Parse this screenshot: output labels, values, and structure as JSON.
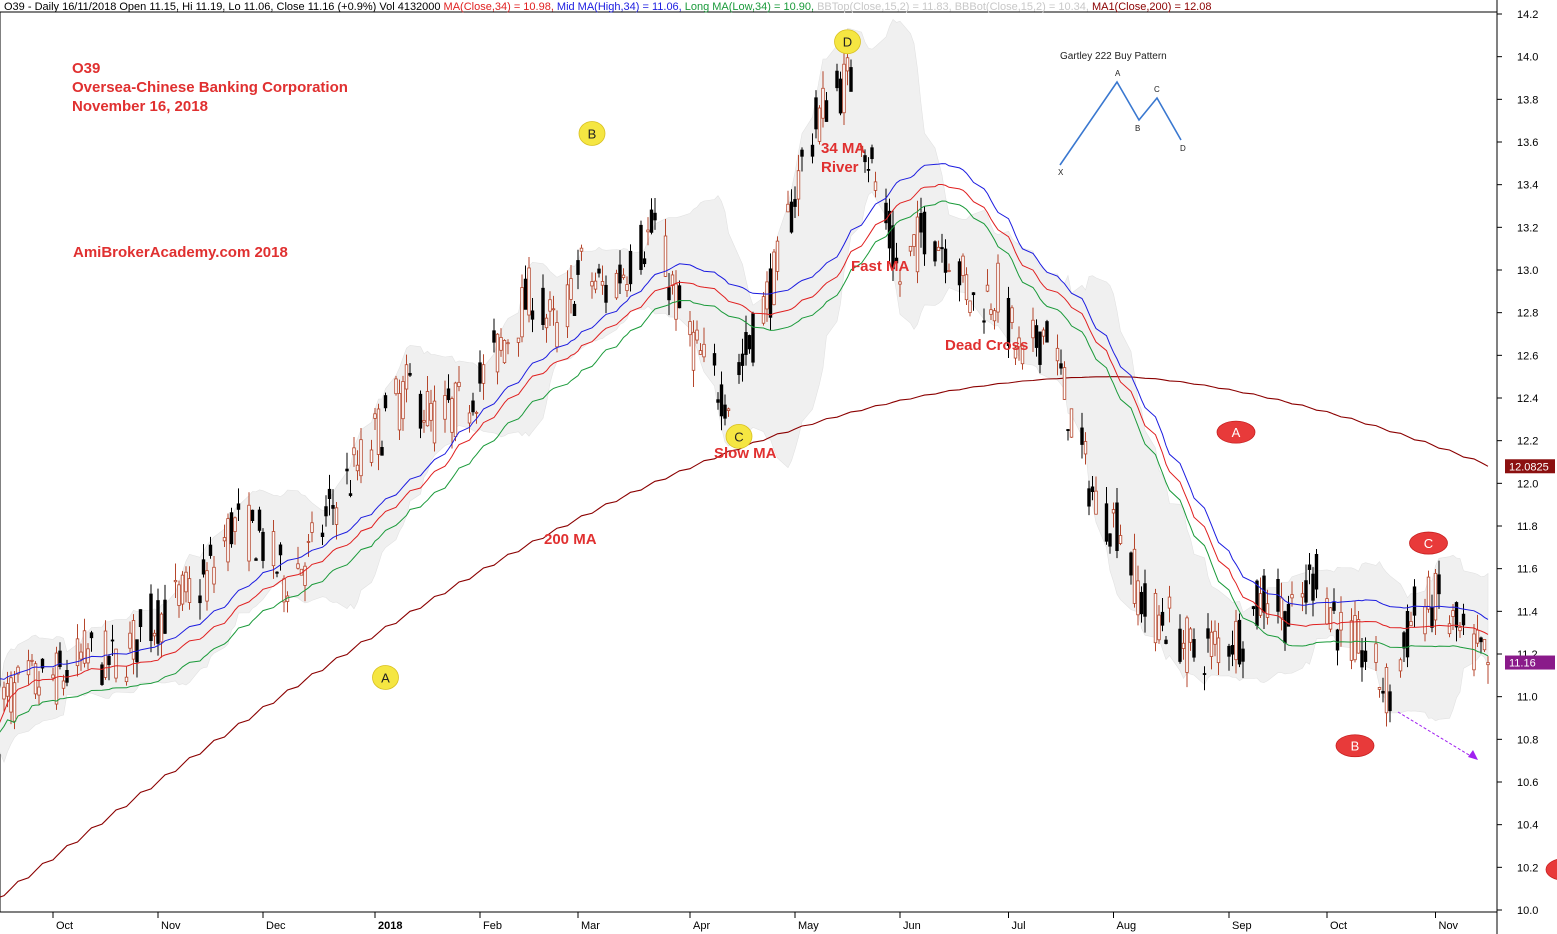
{
  "header": {
    "symbol_info": "O39 - Daily 16/11/2018 Open 11.15, Hi 11.19, Lo 11.06, Close 11.16 (+0.9%) Vol 4132000",
    "ma34": "MA(Close,34) = 10.98,",
    "mid_ma": "Mid MA(High,34) = 11.06,",
    "long_ma": "Long MA(Low,34) = 10.90,",
    "bbtop": "BBTop(Close,15,2) = 11.83,",
    "bbbot": "BBBot(Close,15,2) = 10.34,",
    "ma200": "MA1(Close,200) = 12.08"
  },
  "title": {
    "line1": "O39",
    "line2": "Oversea-Chinese Banking Corporation",
    "line3": "November 16, 2018"
  },
  "annotations": {
    "watermark": "AmiBrokerAcademy.com 2018",
    "ma34_river_1": "34 MA",
    "ma34_river_2": "River",
    "fast_ma": "Fast MA",
    "dead_cross": "Dead Cross",
    "slow_ma": "Slow MA",
    "ma200": "200 MA"
  },
  "gartley": {
    "title": "Gartley 222 Buy Pattern",
    "points": [
      "X",
      "A",
      "B",
      "C",
      "D"
    ]
  },
  "colors": {
    "candle_up": "#b5462c",
    "candle_down": "#000000",
    "ma34": "#e02020",
    "mid_ma": "#1c1ce0",
    "long_ma": "#1a9a3a",
    "ma200": "#8b0000",
    "bb_fill": "#f0f0f0",
    "label_red": "#e03030",
    "marker_yellow": "#f5e642",
    "marker_red": "#e83a3a",
    "price_badge": "#8b1010",
    "last_badge": "#8a1a8a",
    "forecast_arrow": "#a020f0"
  },
  "chart_data": {
    "type": "candlestick",
    "symbol": "O39",
    "ylim": [
      10.0,
      14.2
    ],
    "y_ticks": [
      10.0,
      10.2,
      10.4,
      10.6,
      10.8,
      11.0,
      11.2,
      11.4,
      11.6,
      11.8,
      12.0,
      12.2,
      12.4,
      12.6,
      12.8,
      13.0,
      13.2,
      13.4,
      13.6,
      13.8,
      14.0,
      14.2
    ],
    "month_labels": [
      {
        "label": "Oct",
        "date": "2017-10-02"
      },
      {
        "label": "Nov",
        "date": "2017-11-01"
      },
      {
        "label": "Dec",
        "date": "2017-12-01"
      },
      {
        "label": "2018",
        "date": "2018-01-02"
      },
      {
        "label": "Feb",
        "date": "2018-02-01"
      },
      {
        "label": "Mar",
        "date": "2018-03-01"
      },
      {
        "label": "Apr",
        "date": "2018-04-02"
      },
      {
        "label": "May",
        "date": "2018-05-02"
      },
      {
        "label": "Jun",
        "date": "2018-06-01"
      },
      {
        "label": "Jul",
        "date": "2018-07-02"
      },
      {
        "label": "Aug",
        "date": "2018-08-01"
      },
      {
        "label": "Sep",
        "date": "2018-09-03"
      },
      {
        "label": "Oct",
        "date": "2018-10-01"
      },
      {
        "label": "Nov",
        "date": "2018-11-01"
      }
    ],
    "close_path": [
      [
        "2017-09-15",
        10.95
      ],
      [
        "2017-09-25",
        11.05
      ],
      [
        "2017-10-05",
        11.1
      ],
      [
        "2017-10-12",
        11.2
      ],
      [
        "2017-10-20",
        11.15
      ],
      [
        "2017-10-30",
        11.35
      ],
      [
        "2017-11-07",
        11.45
      ],
      [
        "2017-11-15",
        11.55
      ],
      [
        "2017-11-22",
        11.8
      ],
      [
        "2017-11-30",
        11.75
      ],
      [
        "2017-12-07",
        11.55
      ],
      [
        "2017-12-14",
        11.65
      ],
      [
        "2017-12-21",
        11.9
      ],
      [
        "2017-12-29",
        12.1
      ],
      [
        "2018-01-05",
        12.3
      ],
      [
        "2018-01-12",
        12.45
      ],
      [
        "2018-01-19",
        12.3
      ],
      [
        "2018-01-26",
        12.35
      ],
      [
        "2018-02-02",
        12.5
      ],
      [
        "2018-02-09",
        12.7
      ],
      [
        "2018-02-16",
        12.9
      ],
      [
        "2018-02-23",
        12.7
      ],
      [
        "2018-03-02",
        13.0
      ],
      [
        "2018-03-09",
        12.9
      ],
      [
        "2018-03-16",
        13.05
      ],
      [
        "2018-03-23",
        13.2
      ],
      [
        "2018-03-30",
        12.8
      ],
      [
        "2018-04-06",
        12.55
      ],
      [
        "2018-04-13",
        12.4
      ],
      [
        "2018-04-20",
        12.7
      ],
      [
        "2018-04-27",
        13.0
      ],
      [
        "2018-05-04",
        13.5
      ],
      [
        "2018-05-11",
        13.8
      ],
      [
        "2018-05-18",
        13.9
      ],
      [
        "2018-05-25",
        13.4
      ],
      [
        "2018-06-01",
        12.95
      ],
      [
        "2018-06-08",
        13.2
      ],
      [
        "2018-06-15",
        13.1
      ],
      [
        "2018-06-22",
        12.85
      ],
      [
        "2018-06-29",
        12.9
      ],
      [
        "2018-07-06",
        12.55
      ],
      [
        "2018-07-13",
        12.75
      ],
      [
        "2018-07-20",
        12.3
      ],
      [
        "2018-07-27",
        11.9
      ],
      [
        "2018-08-03",
        11.8
      ],
      [
        "2018-08-10",
        11.4
      ],
      [
        "2018-08-17",
        11.35
      ],
      [
        "2018-08-24",
        11.2
      ],
      [
        "2018-08-31",
        11.25
      ],
      [
        "2018-09-07",
        11.3
      ],
      [
        "2018-09-14",
        11.5
      ],
      [
        "2018-09-21",
        11.35
      ],
      [
        "2018-09-28",
        11.6
      ],
      [
        "2018-10-05",
        11.3
      ],
      [
        "2018-10-12",
        11.2
      ],
      [
        "2018-10-19",
        11.0
      ],
      [
        "2018-10-26",
        11.4
      ],
      [
        "2018-11-02",
        11.45
      ],
      [
        "2018-11-09",
        11.25
      ],
      [
        "2018-11-16",
        11.16
      ]
    ],
    "last_close": 11.16,
    "ma200_last": 12.08,
    "ma200_badge": "12.0825",
    "last_close_badge": "11.16",
    "series": [
      {
        "name": "MA(Close,34)",
        "key": "ma34"
      },
      {
        "name": "Mid MA(High,34)",
        "key": "mid_ma"
      },
      {
        "name": "Long MA(Low,34)",
        "key": "long_ma"
      },
      {
        "name": "MA1(Close,200)",
        "key": "ma200"
      }
    ],
    "wave_markers": [
      {
        "label": "A",
        "date": "2018-01-05",
        "value": 11.09,
        "style": "yellow"
      },
      {
        "label": "B",
        "date": "2018-03-05",
        "value": 13.64,
        "style": "yellow"
      },
      {
        "label": "C",
        "date": "2018-04-16",
        "value": 12.22,
        "style": "yellow"
      },
      {
        "label": "D",
        "date": "2018-05-17",
        "value": 14.07,
        "style": "yellow"
      },
      {
        "label": "A",
        "date": "2018-09-05",
        "value": 12.24,
        "style": "red"
      },
      {
        "label": "B",
        "date": "2018-10-09",
        "value": 10.77,
        "style": "red"
      },
      {
        "label": "C",
        "date": "2018-10-30",
        "value": 11.72,
        "style": "red"
      },
      {
        "label": "D",
        "date": "2018-12-08",
        "value": 10.19,
        "style": "red"
      }
    ]
  }
}
